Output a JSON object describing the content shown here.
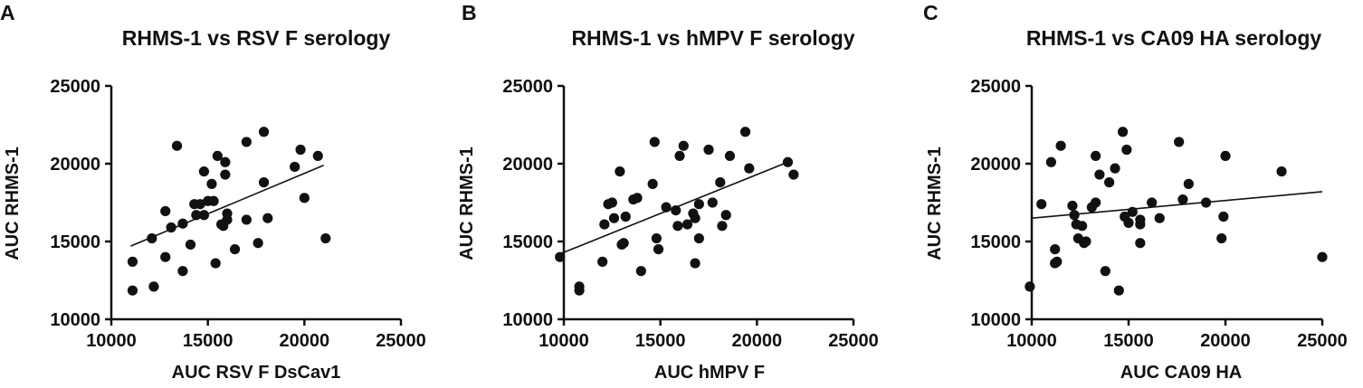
{
  "chart_data": [
    {
      "type": "scatter",
      "panel": "A",
      "title": "RHMS-1 vs RSV F serology",
      "xlabel": "AUC RSV F DsCav1",
      "ylabel": "AUC RHMS-1",
      "xlim": [
        10000,
        25000
      ],
      "ylim": [
        10000,
        25000
      ],
      "xticks": [
        "10000",
        "15000",
        "20000",
        "25000"
      ],
      "yticks": [
        "10000",
        "15000",
        "20000",
        "25000"
      ],
      "grid": false,
      "fit_line": [
        [
          11000,
          14700
        ],
        [
          21000,
          19900
        ]
      ],
      "points": [
        [
          11100,
          13700
        ],
        [
          11100,
          11850
        ],
        [
          12100,
          15200
        ],
        [
          12200,
          12100
        ],
        [
          12800,
          16950
        ],
        [
          12800,
          14000
        ],
        [
          13100,
          15900
        ],
        [
          13400,
          21150
        ],
        [
          13700,
          16150
        ],
        [
          13700,
          13100
        ],
        [
          14100,
          14800
        ],
        [
          14300,
          17400
        ],
        [
          14400,
          16700
        ],
        [
          14600,
          17400
        ],
        [
          14800,
          19500
        ],
        [
          14800,
          16700
        ],
        [
          15000,
          17600
        ],
        [
          15200,
          18700
        ],
        [
          15300,
          17600
        ],
        [
          15400,
          13600
        ],
        [
          15500,
          20500
        ],
        [
          15700,
          16100
        ],
        [
          15800,
          16000
        ],
        [
          15900,
          20100
        ],
        [
          15900,
          19300
        ],
        [
          16000,
          16800
        ],
        [
          16000,
          16400
        ],
        [
          16400,
          14500
        ],
        [
          17000,
          21400
        ],
        [
          17000,
          16400
        ],
        [
          17600,
          14900
        ],
        [
          17900,
          22050
        ],
        [
          17900,
          18800
        ],
        [
          18100,
          16500
        ],
        [
          19500,
          19800
        ],
        [
          19800,
          20900
        ],
        [
          20000,
          17800
        ],
        [
          20700,
          20500
        ],
        [
          21100,
          15200
        ]
      ]
    },
    {
      "type": "scatter",
      "panel": "B",
      "title": "RHMS-1 vs hMPV F serology",
      "xlabel": "AUC hMPV F",
      "ylabel": "AUC RHMS-1",
      "xlim": [
        10000,
        25000
      ],
      "ylim": [
        10000,
        25000
      ],
      "xticks": [
        "10000",
        "15000",
        "20000",
        "25000"
      ],
      "yticks": [
        "10000",
        "15000",
        "20000",
        "25000"
      ],
      "grid": false,
      "fit_line": [
        [
          9800,
          14200
        ],
        [
          21600,
          20100
        ]
      ],
      "points": [
        [
          9800,
          14000
        ],
        [
          10800,
          12100
        ],
        [
          10800,
          11850
        ],
        [
          12000,
          13700
        ],
        [
          12100,
          16100
        ],
        [
          12300,
          17400
        ],
        [
          12500,
          17500
        ],
        [
          12600,
          16500
        ],
        [
          12900,
          19500
        ],
        [
          13000,
          14800
        ],
        [
          13100,
          14900
        ],
        [
          13200,
          16600
        ],
        [
          13600,
          17700
        ],
        [
          13800,
          17800
        ],
        [
          14000,
          13100
        ],
        [
          14600,
          18700
        ],
        [
          14700,
          21400
        ],
        [
          14800,
          15200
        ],
        [
          14900,
          14500
        ],
        [
          15300,
          17200
        ],
        [
          15800,
          17000
        ],
        [
          15900,
          16000
        ],
        [
          16000,
          20500
        ],
        [
          16200,
          21150
        ],
        [
          16400,
          16100
        ],
        [
          16700,
          16800
        ],
        [
          16800,
          16500
        ],
        [
          16800,
          13600
        ],
        [
          17000,
          15200
        ],
        [
          17000,
          17400
        ],
        [
          17500,
          20900
        ],
        [
          17700,
          17500
        ],
        [
          18100,
          18800
        ],
        [
          18200,
          16000
        ],
        [
          18400,
          16700
        ],
        [
          18600,
          20500
        ],
        [
          19400,
          22050
        ],
        [
          19600,
          19700
        ],
        [
          21600,
          20100
        ],
        [
          21900,
          19300
        ]
      ]
    },
    {
      "type": "scatter",
      "panel": "C",
      "title": "RHMS-1 vs CA09 HA serology",
      "xlabel": "AUC CA09 HA",
      "ylabel": "AUC RHMS-1",
      "xlim": [
        10000,
        25000
      ],
      "ylim": [
        10000,
        25000
      ],
      "xticks": [
        "10000",
        "15000",
        "20000",
        "25000"
      ],
      "yticks": [
        "10000",
        "15000",
        "20000",
        "25000"
      ],
      "grid": false,
      "fit_line": [
        [
          10000,
          16500
        ],
        [
          25000,
          18200
        ]
      ],
      "points": [
        [
          9900,
          12100
        ],
        [
          10500,
          17400
        ],
        [
          11000,
          20100
        ],
        [
          11200,
          14500
        ],
        [
          11200,
          13600
        ],
        [
          11300,
          13700
        ],
        [
          11500,
          21150
        ],
        [
          12100,
          17300
        ],
        [
          12200,
          16700
        ],
        [
          12300,
          16100
        ],
        [
          12400,
          15200
        ],
        [
          12600,
          16000
        ],
        [
          12700,
          14900
        ],
        [
          12800,
          15000
        ],
        [
          13100,
          17200
        ],
        [
          13300,
          17500
        ],
        [
          13300,
          20500
        ],
        [
          13500,
          19300
        ],
        [
          13800,
          13100
        ],
        [
          14000,
          18800
        ],
        [
          14300,
          19700
        ],
        [
          14500,
          11850
        ],
        [
          14700,
          22050
        ],
        [
          14800,
          16600
        ],
        [
          14900,
          20900
        ],
        [
          15000,
          16200
        ],
        [
          15200,
          16900
        ],
        [
          15600,
          16400
        ],
        [
          15600,
          16100
        ],
        [
          15600,
          14900
        ],
        [
          16200,
          17500
        ],
        [
          16600,
          16500
        ],
        [
          17600,
          21400
        ],
        [
          17800,
          17700
        ],
        [
          18100,
          18700
        ],
        [
          19000,
          17500
        ],
        [
          19800,
          15200
        ],
        [
          19900,
          16600
        ],
        [
          20000,
          20500
        ],
        [
          22900,
          19500
        ],
        [
          25000,
          14000
        ]
      ]
    }
  ]
}
